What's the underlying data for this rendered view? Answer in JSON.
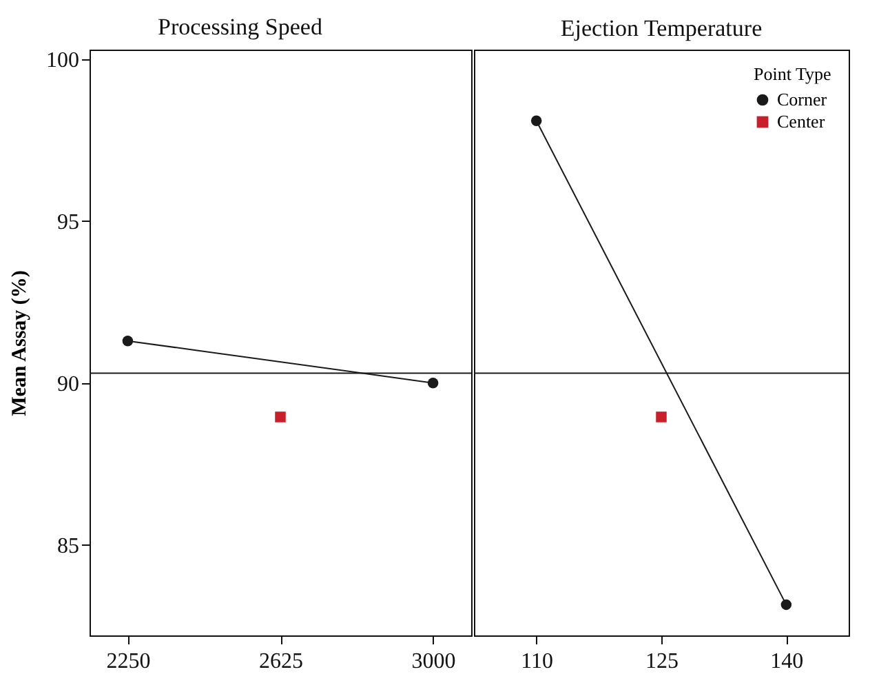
{
  "chart_data": [
    {
      "type": "line",
      "title": "Processing Speed",
      "ylabel": "Mean Assay (%)",
      "xlim": [
        2156.25,
        3093.75
      ],
      "xticks": [
        2250,
        2625,
        3000
      ],
      "ylim": [
        82.2,
        100.3
      ],
      "yticks": [
        85,
        90,
        95,
        100
      ],
      "grid": false,
      "legend": false,
      "line_style": "solid",
      "series": [
        {
          "type": "line",
          "marker": "circle",
          "color": "#1a1a1a",
          "x": [
            2250,
            3000
          ],
          "values": [
            91.3,
            90.0
          ]
        },
        {
          "type": "scatter",
          "marker": "square",
          "color": "#c8202a",
          "x": [
            2625
          ],
          "values": [
            88.95
          ]
        }
      ],
      "ref_lines": [
        {
          "axis": "y",
          "value": 90.3,
          "color": "#1a1a1a"
        }
      ]
    },
    {
      "type": "line",
      "title": "Ejection Temperature",
      "legend_title": "Point Type",
      "xlim": [
        102.5,
        147.5
      ],
      "xticks": [
        110,
        125,
        140
      ],
      "ylim": [
        82.2,
        100.3
      ],
      "yticks": [
        85,
        90,
        95,
        100
      ],
      "tick_labels": "x",
      "grid": false,
      "legend": "top right",
      "line_style": "solid",
      "series": [
        {
          "name": "Corner",
          "type": "line",
          "marker": "circle",
          "color": "#1a1a1a",
          "x": [
            110,
            140
          ],
          "values": [
            98.1,
            83.15
          ]
        },
        {
          "name": "Center",
          "type": "scatter",
          "marker": "square",
          "color": "#c8202a",
          "x": [
            125
          ],
          "values": [
            88.95
          ]
        }
      ],
      "ref_lines": [
        {
          "axis": "y",
          "value": 90.3,
          "color": "#1a1a1a"
        }
      ]
    }
  ]
}
